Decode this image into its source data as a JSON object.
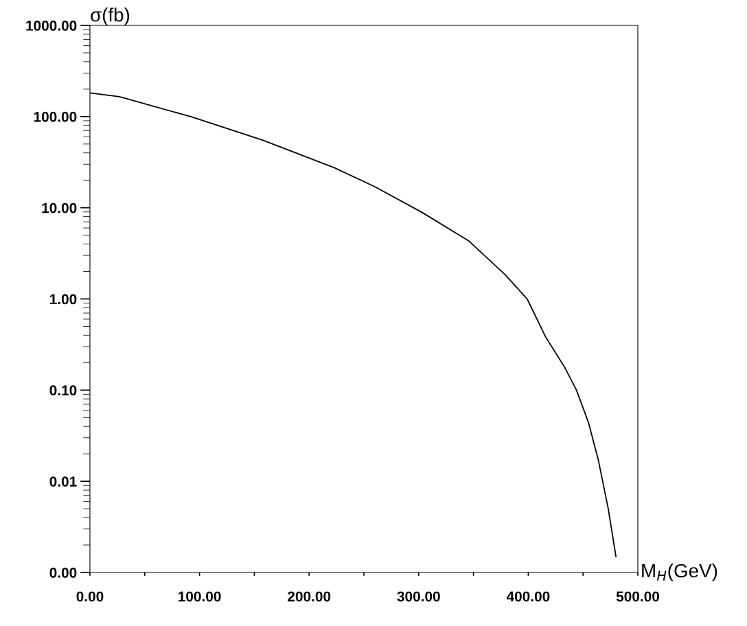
{
  "chart_data": {
    "type": "line",
    "xlabel": "M$_{H}$(GeV)",
    "ylabel": "σ(fb)",
    "log": "y",
    "grid": false,
    "legend": false,
    "marker": "none",
    "line_style": "solid",
    "xlim": [
      0,
      500
    ],
    "ylim": [
      0.001,
      1000
    ],
    "xticks": [
      {
        "value": 0,
        "label": "0.00"
      },
      {
        "value": 50,
        "label": null
      },
      {
        "value": 100,
        "label": "100.00"
      },
      {
        "value": 150,
        "label": null
      },
      {
        "value": 200,
        "label": "200.00"
      },
      {
        "value": 250,
        "label": null
      },
      {
        "value": 300,
        "label": "300.00"
      },
      {
        "value": 350,
        "label": null
      },
      {
        "value": 400,
        "label": "400.00"
      },
      {
        "value": 450,
        "label": null
      },
      {
        "value": 500,
        "label": "500.00"
      }
    ],
    "yticks": [
      {
        "value": 0.001,
        "label": "0.00"
      },
      {
        "value": 0.01,
        "label": "0.01"
      },
      {
        "value": 0.1,
        "label": "0.10"
      },
      {
        "value": 1,
        "label": "1.00"
      },
      {
        "value": 10,
        "label": "10.00"
      },
      {
        "value": 100,
        "label": "100.00"
      },
      {
        "value": 1000,
        "label": "1000.00"
      }
    ],
    "series": [
      {
        "color": "#000000",
        "x": [
          0,
          27,
          93,
          158,
          223,
          260,
          303,
          346,
          379,
          399,
          416,
          433,
          444,
          455,
          464,
          473,
          480
        ],
        "values": [
          182,
          165,
          99,
          55,
          27.5,
          17,
          8.9,
          4.3,
          1.84,
          1.0,
          0.38,
          0.18,
          0.1,
          0.044,
          0.017,
          0.005,
          0.0015
        ]
      }
    ]
  }
}
